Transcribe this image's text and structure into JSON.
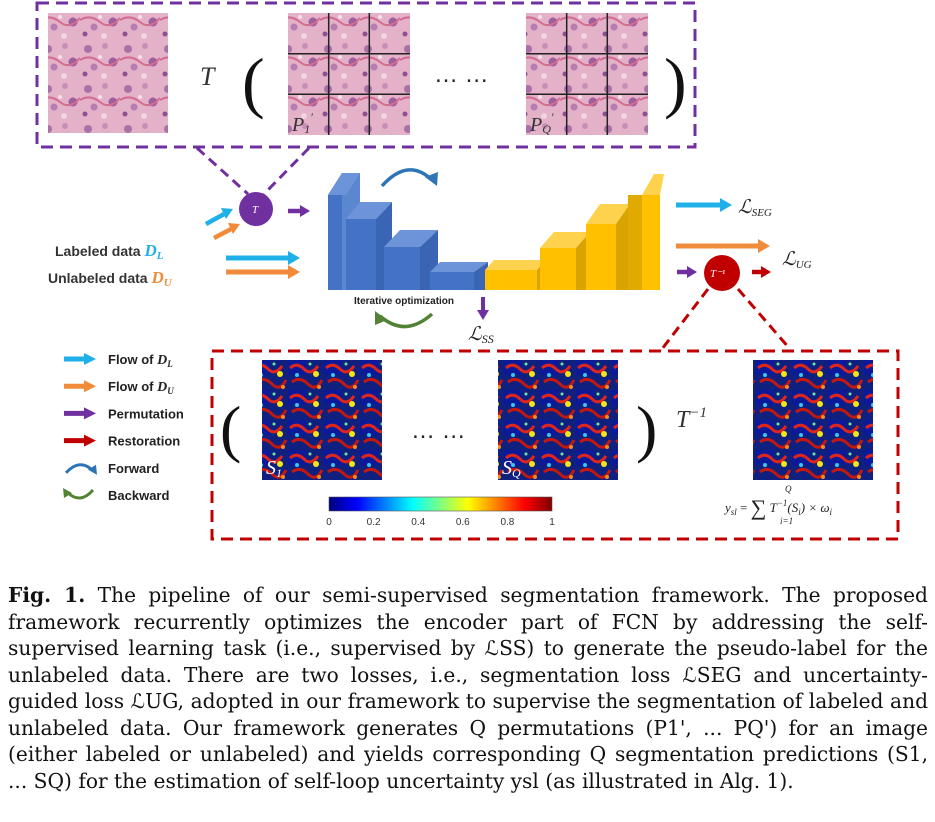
{
  "top_panel": {
    "operator": "T",
    "ellipsis": "… …",
    "patch_labels": [
      "P1'",
      "PQ'"
    ]
  },
  "network": {
    "perm_node": "T",
    "restore_node": "T⁻¹",
    "labeled_text": "Labeled data",
    "labeled_sym": "DL",
    "unlabeled_text": "Unlabeled data",
    "unlabeled_sym": "DU",
    "iter_label": "Iterative optimization",
    "loss_seg": "ℒSEG",
    "loss_ug": "ℒUG",
    "loss_ss": "ℒSS"
  },
  "legend": [
    {
      "label": "Flow of DL",
      "color": "#1fb0ea",
      "kind": "arrow"
    },
    {
      "label": "Flow of DU",
      "color": "#ef8b3a",
      "kind": "arrow"
    },
    {
      "label": "Permutation",
      "color": "#7030a0",
      "kind": "arrow"
    },
    {
      "label": "Restoration",
      "color": "#c00000",
      "kind": "arrow"
    },
    {
      "label": "Forward",
      "color": "#2e75b6",
      "kind": "curve"
    },
    {
      "label": "Backward",
      "color": "#548235",
      "kind": "curve"
    }
  ],
  "bottom_panel": {
    "ellipsis": "… …",
    "inverse_op": "T⁻¹",
    "map_labels": [
      "S1",
      "SQ"
    ],
    "formula": "ysl = ∑ T⁻¹(Si) × ωi",
    "formula_upper": "Q",
    "formula_lower": "i=1",
    "colorbar_ticks": [
      "0",
      "0.2",
      "0.4",
      "0.6",
      "0.8",
      "1"
    ]
  },
  "colors": {
    "purple": "#7030a0",
    "red": "#c00000",
    "cyan": "#1fb0ea",
    "orange": "#ef8b3a",
    "encoder": "#4472c4",
    "decoder": "#ffc000"
  },
  "caption": {
    "label": "Fig. 1.",
    "text": "The pipeline of our semi-supervised segmentation framework. The proposed framework recurrently optimizes the encoder part of FCN by addressing the self-supervised learning task (i.e., supervised by ℒSS) to generate the pseudo-label for the unlabeled data. There are two losses, i.e., segmentation loss ℒSEG and uncertainty-guided loss ℒUG, adopted in our framework to supervise the segmentation of labeled and unlabeled data. Our framework generates Q permutations (P1', ... PQ') for an image (either labeled or unlabeled) and yields corresponding Q segmentation predictions (S1, ... SQ) for the estimation of self-loop uncertainty ysl (as illustrated in Alg. 1)."
  }
}
